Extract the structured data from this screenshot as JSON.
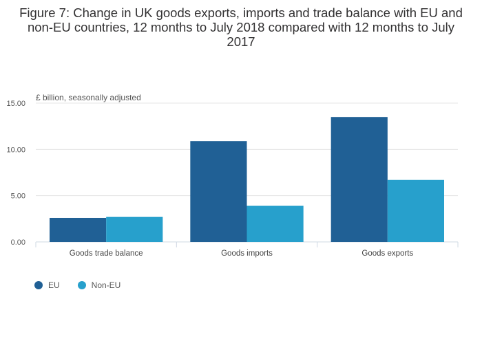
{
  "title": "Figure 7: Change in UK goods exports, imports and trade balance with EU and non-EU countries, 12 months to July 2018 compared with 12 months to July 2017",
  "colors": {
    "eu": "#206095",
    "non_eu": "#27a0cc"
  },
  "chart_data": {
    "type": "bar",
    "title": "Figure 7: Change in UK goods exports, imports and trade balance with EU and non-EU countries, 12 months to July 2018 compared with 12 months to July 2017",
    "ylabel": "£ billion, seasonally adjusted",
    "xlabel": "",
    "ylim": [
      0,
      15
    ],
    "yticks": [
      "0.00",
      "5.00",
      "10.00",
      "15.00"
    ],
    "categories": [
      "Goods trade balance",
      "Goods imports",
      "Goods exports"
    ],
    "series": [
      {
        "name": "EU",
        "values": [
          2.6,
          10.9,
          13.5
        ]
      },
      {
        "name": "Non-EU",
        "values": [
          2.7,
          3.9,
          6.7
        ]
      }
    ],
    "grid": true,
    "legend": "bottom-left"
  }
}
